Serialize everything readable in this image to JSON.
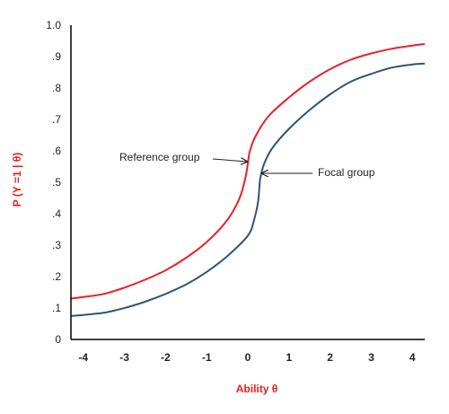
{
  "chart_data": {
    "type": "line",
    "xlabel": "Ability θ",
    "ylabel": "P (Y =1 | θ)",
    "axis_title_color": "#e02020",
    "xlim": [
      -4.3,
      4.3
    ],
    "ylim": [
      0,
      1.0
    ],
    "x_ticks": [
      -4,
      -3,
      -2,
      -1,
      0,
      1,
      2,
      3,
      4
    ],
    "x_tick_labels": [
      "-4",
      "-3",
      "-2",
      "-1",
      "0",
      "1",
      "2",
      "3",
      "4"
    ],
    "y_ticks": [
      0,
      0.1,
      0.2,
      0.3,
      0.4,
      0.5,
      0.6,
      0.7,
      0.8,
      0.9,
      1.0
    ],
    "y_tick_labels": [
      "0",
      ".1",
      ".2",
      ".3",
      ".4",
      ".5",
      ".6",
      ".7",
      ".8",
      ".9",
      "1.0"
    ],
    "grid": false,
    "series": [
      {
        "color": "#e8202a",
        "x": [
          -4.3,
          -4.0,
          -3.5,
          -3.0,
          -2.5,
          -2.0,
          -1.5,
          -1.0,
          -0.5,
          -0.2,
          -0.05,
          0.0,
          0.05,
          0.2,
          0.5,
          1.0,
          1.5,
          2.0,
          2.5,
          3.0,
          3.5,
          4.0,
          4.3
        ],
        "y": [
          0.13,
          0.135,
          0.145,
          0.165,
          0.19,
          0.22,
          0.26,
          0.31,
          0.38,
          0.45,
          0.52,
          0.56,
          0.6,
          0.65,
          0.71,
          0.77,
          0.82,
          0.86,
          0.89,
          0.91,
          0.925,
          0.935,
          0.94
        ]
      },
      {
        "color": "#2e5478",
        "x": [
          -4.3,
          -4.0,
          -3.5,
          -3.0,
          -2.5,
          -2.0,
          -1.5,
          -1.0,
          -0.5,
          0.0,
          0.15,
          0.25,
          0.3,
          0.4,
          0.6,
          1.0,
          1.5,
          2.0,
          2.5,
          3.0,
          3.5,
          4.0,
          4.3
        ],
        "y": [
          0.075,
          0.078,
          0.085,
          0.1,
          0.12,
          0.145,
          0.175,
          0.215,
          0.265,
          0.33,
          0.38,
          0.44,
          0.51,
          0.56,
          0.61,
          0.67,
          0.73,
          0.78,
          0.82,
          0.845,
          0.865,
          0.875,
          0.878
        ]
      }
    ],
    "annotations": [
      {
        "text": "Reference group",
        "target": [
          0.02,
          0.56
        ]
      },
      {
        "text": "Focal group",
        "target": [
          0.28,
          0.52
        ]
      }
    ]
  }
}
